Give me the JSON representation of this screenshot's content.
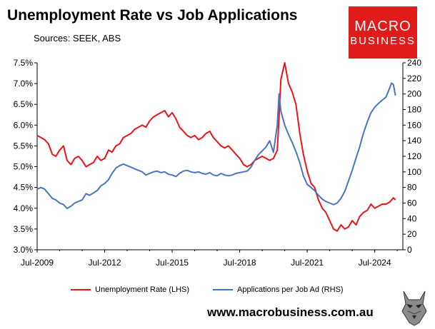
{
  "header": {
    "title": "Unemployment Rate vs Job Applications",
    "subtitle": "Sources: SEEK, ABS"
  },
  "logo": {
    "line1": "MACRO",
    "line2": "BUSINESS",
    "color": "#e01b1b"
  },
  "footer": {
    "url": "www.macrobusiness.com.au"
  },
  "chart_data": {
    "type": "line",
    "title": "Unemployment Rate vs Job Applications",
    "grid": false,
    "legend_position": "bottom",
    "x_ticks": [
      "Jul-2009",
      "Jul-2012",
      "Jul-2015",
      "Jul-2018",
      "Jul-2021",
      "Jul-2024"
    ],
    "x_range": [
      2009.5,
      2025.75
    ],
    "left_axis": {
      "range": [
        3.0,
        7.5
      ],
      "ticks": [
        "3.0%",
        "3.5%",
        "4.0%",
        "4.5%",
        "5.0%",
        "5.5%",
        "6.0%",
        "6.5%",
        "7.0%",
        "7.5%"
      ]
    },
    "right_axis": {
      "range": [
        0,
        240
      ],
      "ticks": [
        "0",
        "20",
        "40",
        "60",
        "80",
        "100",
        "120",
        "140",
        "160",
        "180",
        "200",
        "220",
        "240"
      ]
    },
    "series": [
      {
        "name": "Unemployment Rate (LHS)",
        "axis": "left",
        "color": "#e8161b",
        "points": [
          [
            2009.5,
            5.75
          ],
          [
            2009.67,
            5.7
          ],
          [
            2009.83,
            5.65
          ],
          [
            2010.0,
            5.55
          ],
          [
            2010.17,
            5.3
          ],
          [
            2010.33,
            5.25
          ],
          [
            2010.5,
            5.4
          ],
          [
            2010.67,
            5.5
          ],
          [
            2010.83,
            5.15
          ],
          [
            2011.0,
            5.05
          ],
          [
            2011.17,
            5.2
          ],
          [
            2011.33,
            5.25
          ],
          [
            2011.5,
            5.15
          ],
          [
            2011.67,
            5.0
          ],
          [
            2011.83,
            5.05
          ],
          [
            2012.0,
            5.1
          ],
          [
            2012.17,
            5.25
          ],
          [
            2012.33,
            5.15
          ],
          [
            2012.5,
            5.2
          ],
          [
            2012.67,
            5.4
          ],
          [
            2012.83,
            5.35
          ],
          [
            2013.0,
            5.5
          ],
          [
            2013.17,
            5.55
          ],
          [
            2013.33,
            5.7
          ],
          [
            2013.5,
            5.75
          ],
          [
            2013.67,
            5.8
          ],
          [
            2013.83,
            5.9
          ],
          [
            2014.0,
            5.95
          ],
          [
            2014.17,
            6.0
          ],
          [
            2014.33,
            5.95
          ],
          [
            2014.5,
            6.1
          ],
          [
            2014.67,
            6.2
          ],
          [
            2014.83,
            6.25
          ],
          [
            2015.0,
            6.3
          ],
          [
            2015.17,
            6.35
          ],
          [
            2015.33,
            6.2
          ],
          [
            2015.5,
            6.3
          ],
          [
            2015.67,
            6.15
          ],
          [
            2015.83,
            5.95
          ],
          [
            2016.0,
            5.85
          ],
          [
            2016.17,
            5.75
          ],
          [
            2016.33,
            5.7
          ],
          [
            2016.5,
            5.75
          ],
          [
            2016.67,
            5.65
          ],
          [
            2016.83,
            5.7
          ],
          [
            2017.0,
            5.8
          ],
          [
            2017.17,
            5.85
          ],
          [
            2017.33,
            5.7
          ],
          [
            2017.5,
            5.6
          ],
          [
            2017.67,
            5.5
          ],
          [
            2017.83,
            5.45
          ],
          [
            2018.0,
            5.5
          ],
          [
            2018.17,
            5.4
          ],
          [
            2018.33,
            5.3
          ],
          [
            2018.5,
            5.2
          ],
          [
            2018.67,
            5.05
          ],
          [
            2018.83,
            5.0
          ],
          [
            2019.0,
            5.05
          ],
          [
            2019.17,
            5.15
          ],
          [
            2019.33,
            5.2
          ],
          [
            2019.5,
            5.25
          ],
          [
            2019.67,
            5.2
          ],
          [
            2019.83,
            5.15
          ],
          [
            2020.0,
            5.2
          ],
          [
            2020.17,
            5.4
          ],
          [
            2020.25,
            6.2
          ],
          [
            2020.33,
            7.1
          ],
          [
            2020.5,
            7.5
          ],
          [
            2020.67,
            7.0
          ],
          [
            2020.83,
            6.8
          ],
          [
            2021.0,
            6.5
          ],
          [
            2021.17,
            5.8
          ],
          [
            2021.33,
            5.3
          ],
          [
            2021.5,
            4.9
          ],
          [
            2021.67,
            4.6
          ],
          [
            2021.83,
            4.5
          ],
          [
            2022.0,
            4.2
          ],
          [
            2022.17,
            4.0
          ],
          [
            2022.33,
            3.9
          ],
          [
            2022.5,
            3.7
          ],
          [
            2022.67,
            3.5
          ],
          [
            2022.83,
            3.45
          ],
          [
            2023.0,
            3.6
          ],
          [
            2023.17,
            3.5
          ],
          [
            2023.33,
            3.55
          ],
          [
            2023.5,
            3.7
          ],
          [
            2023.67,
            3.6
          ],
          [
            2023.83,
            3.8
          ],
          [
            2024.0,
            3.9
          ],
          [
            2024.17,
            3.95
          ],
          [
            2024.33,
            4.1
          ],
          [
            2024.5,
            4.0
          ],
          [
            2024.67,
            4.05
          ],
          [
            2024.83,
            4.1
          ],
          [
            2025.0,
            4.1
          ],
          [
            2025.17,
            4.15
          ],
          [
            2025.33,
            4.25
          ],
          [
            2025.42,
            4.2
          ]
        ]
      },
      {
        "name": "Applications per Job Ad (RHS)",
        "axis": "right",
        "color": "#4a73c4",
        "points": [
          [
            2009.5,
            78
          ],
          [
            2009.67,
            80
          ],
          [
            2009.83,
            78
          ],
          [
            2010.0,
            72
          ],
          [
            2010.17,
            66
          ],
          [
            2010.33,
            64
          ],
          [
            2010.5,
            60
          ],
          [
            2010.67,
            58
          ],
          [
            2010.83,
            53
          ],
          [
            2011.0,
            56
          ],
          [
            2011.17,
            60
          ],
          [
            2011.33,
            62
          ],
          [
            2011.5,
            64
          ],
          [
            2011.67,
            72
          ],
          [
            2011.83,
            70
          ],
          [
            2012.0,
            73
          ],
          [
            2012.17,
            76
          ],
          [
            2012.33,
            82
          ],
          [
            2012.5,
            85
          ],
          [
            2012.67,
            90
          ],
          [
            2012.83,
            98
          ],
          [
            2013.0,
            105
          ],
          [
            2013.17,
            108
          ],
          [
            2013.33,
            110
          ],
          [
            2013.5,
            108
          ],
          [
            2013.67,
            106
          ],
          [
            2013.83,
            104
          ],
          [
            2014.0,
            102
          ],
          [
            2014.17,
            100
          ],
          [
            2014.33,
            96
          ],
          [
            2014.5,
            98
          ],
          [
            2014.67,
            100
          ],
          [
            2014.83,
            101
          ],
          [
            2015.0,
            99
          ],
          [
            2015.17,
            100
          ],
          [
            2015.33,
            97
          ],
          [
            2015.5,
            96
          ],
          [
            2015.67,
            94
          ],
          [
            2015.83,
            98
          ],
          [
            2016.0,
            101
          ],
          [
            2016.17,
            102
          ],
          [
            2016.33,
            100
          ],
          [
            2016.5,
            99
          ],
          [
            2016.67,
            100
          ],
          [
            2016.83,
            98
          ],
          [
            2017.0,
            97
          ],
          [
            2017.17,
            99
          ],
          [
            2017.33,
            96
          ],
          [
            2017.5,
            95
          ],
          [
            2017.67,
            98
          ],
          [
            2017.83,
            96
          ],
          [
            2018.0,
            95
          ],
          [
            2018.17,
            96
          ],
          [
            2018.33,
            98
          ],
          [
            2018.5,
            99
          ],
          [
            2018.67,
            100
          ],
          [
            2018.83,
            101
          ],
          [
            2019.0,
            106
          ],
          [
            2019.17,
            115
          ],
          [
            2019.33,
            122
          ],
          [
            2019.5,
            127
          ],
          [
            2019.67,
            132
          ],
          [
            2019.83,
            140
          ],
          [
            2020.0,
            125
          ],
          [
            2020.17,
            160
          ],
          [
            2020.25,
            200
          ],
          [
            2020.33,
            178
          ],
          [
            2020.5,
            160
          ],
          [
            2020.67,
            148
          ],
          [
            2020.83,
            138
          ],
          [
            2021.0,
            126
          ],
          [
            2021.17,
            112
          ],
          [
            2021.33,
            95
          ],
          [
            2021.5,
            84
          ],
          [
            2021.67,
            80
          ],
          [
            2021.83,
            76
          ],
          [
            2022.0,
            70
          ],
          [
            2022.17,
            65
          ],
          [
            2022.33,
            62
          ],
          [
            2022.5,
            60
          ],
          [
            2022.67,
            58
          ],
          [
            2022.83,
            60
          ],
          [
            2023.0,
            66
          ],
          [
            2023.17,
            75
          ],
          [
            2023.33,
            88
          ],
          [
            2023.5,
            102
          ],
          [
            2023.67,
            118
          ],
          [
            2023.83,
            132
          ],
          [
            2024.0,
            150
          ],
          [
            2024.17,
            164
          ],
          [
            2024.33,
            176
          ],
          [
            2024.5,
            183
          ],
          [
            2024.67,
            188
          ],
          [
            2024.83,
            192
          ],
          [
            2025.0,
            196
          ],
          [
            2025.17,
            208
          ],
          [
            2025.25,
            214
          ],
          [
            2025.33,
            212
          ],
          [
            2025.42,
            198
          ]
        ]
      }
    ]
  }
}
